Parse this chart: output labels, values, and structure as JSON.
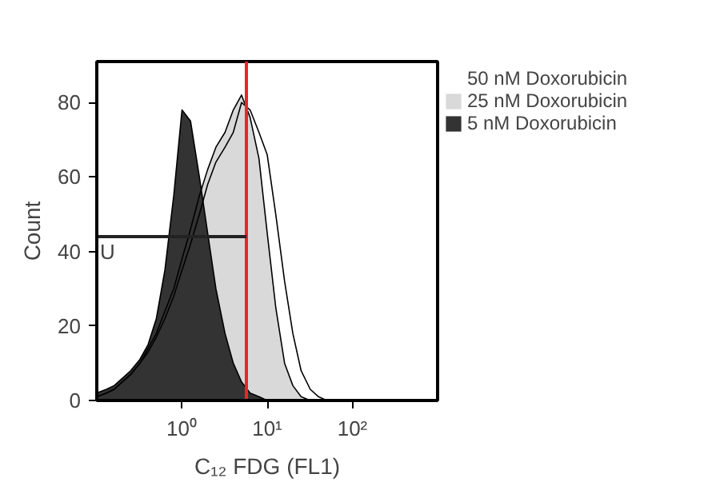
{
  "chart_data": {
    "type": "area",
    "xlabel": "C₁₂ FDG (FL1)",
    "ylabel": "Count",
    "log": "x",
    "x": [
      0.1,
      0.13,
      0.16,
      0.2,
      0.25,
      0.32,
      0.4,
      0.5,
      0.63,
      0.8,
      1,
      1.26,
      1.6,
      2,
      2.5,
      3.2,
      4,
      5,
      6.3,
      8,
      10,
      12.6,
      16,
      20,
      25,
      32,
      40,
      50,
      63,
      80,
      100
    ],
    "series": [
      {
        "name": "50 nM Doxorubicin",
        "color": "#ffffff",
        "values": [
          1,
          2,
          3,
          5,
          7,
          10,
          13,
          17,
          22,
          28,
          35,
          42,
          50,
          58,
          64,
          68,
          72,
          80,
          78,
          72,
          66,
          50,
          32,
          18,
          8,
          3,
          1,
          0,
          0,
          0,
          0
        ]
      },
      {
        "name": "25 nM Doxorubicin",
        "color": "#d9d9d9",
        "values": [
          1,
          2,
          3,
          5,
          7,
          10,
          14,
          18,
          24,
          30,
          38,
          46,
          55,
          62,
          68,
          72,
          78,
          82,
          76,
          65,
          45,
          25,
          10,
          4,
          1,
          0,
          0,
          0,
          0,
          0,
          0
        ]
      },
      {
        "name": "5 nM Doxorubicin",
        "color": "#333333",
        "values": [
          2,
          3,
          4,
          6,
          8,
          11,
          15,
          22,
          35,
          55,
          78,
          75,
          60,
          45,
          30,
          18,
          10,
          5,
          2,
          1,
          0,
          0,
          0,
          0,
          0,
          0,
          0,
          0,
          0,
          0,
          0
        ]
      }
    ],
    "xlim": [
      0.1,
      1000
    ],
    "xticks": [
      {
        "value": 1,
        "label": "10⁰"
      },
      {
        "value": 10,
        "label": "10¹"
      },
      {
        "value": 100,
        "label": "10²"
      }
    ],
    "ylim": [
      0,
      91
    ],
    "yticks": [
      0,
      20,
      40,
      60,
      80
    ],
    "ref_lines": [
      {
        "axis": "x",
        "value": 5.7,
        "color": "#e8262b"
      },
      {
        "axis": "y",
        "value": 44,
        "label": "U",
        "color": "#222222"
      }
    ],
    "grid": false,
    "legend": "top right"
  }
}
